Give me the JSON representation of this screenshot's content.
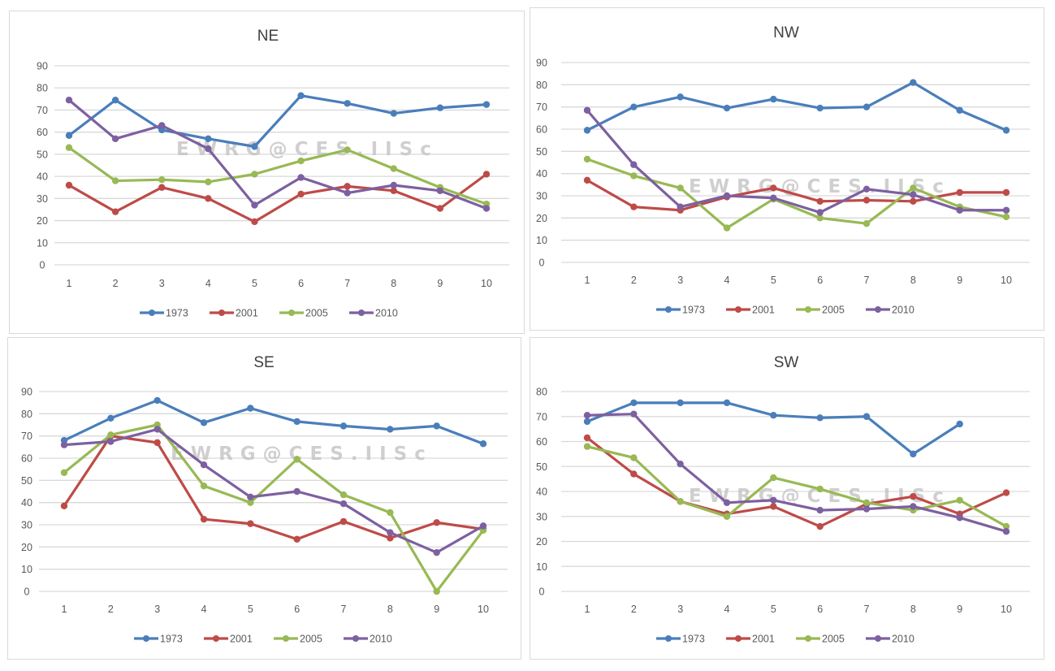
{
  "chart_data": [
    {
      "type": "line",
      "title": "NE",
      "xlabel": "",
      "ylabel": "",
      "x": [
        1,
        2,
        3,
        4,
        5,
        6,
        7,
        8,
        9,
        10
      ],
      "ylim": [
        0,
        90
      ],
      "yticks": [
        0,
        10,
        20,
        30,
        40,
        50,
        60,
        70,
        80,
        90
      ],
      "grid": true,
      "legend": "bottom",
      "watermark": "EWRG@CES.IISc",
      "series": [
        {
          "name": "1973",
          "color": "#4a7ebb",
          "values": [
            58.5,
            74.5,
            61,
            57,
            53.5,
            76.5,
            73,
            68.5,
            71,
            72.5
          ]
        },
        {
          "name": "2001",
          "color": "#be4b48",
          "values": [
            36,
            24,
            35,
            30,
            19.5,
            32,
            35.5,
            33.5,
            25.5,
            41
          ]
        },
        {
          "name": "2005",
          "color": "#98b954",
          "values": [
            53,
            38,
            38.5,
            37.5,
            41,
            47,
            52,
            43.5,
            35,
            27.5
          ]
        },
        {
          "name": "2010",
          "color": "#7d60a0",
          "values": [
            74.5,
            57,
            63,
            52.5,
            27,
            39.5,
            32.5,
            36,
            33.5,
            25.5
          ]
        }
      ]
    },
    {
      "type": "line",
      "title": "NW",
      "xlabel": "",
      "ylabel": "",
      "x": [
        1,
        2,
        3,
        4,
        5,
        6,
        7,
        8,
        9,
        10
      ],
      "ylim": [
        0,
        90
      ],
      "yticks": [
        0,
        10,
        20,
        30,
        40,
        50,
        60,
        70,
        80,
        90
      ],
      "grid": true,
      "legend": "bottom",
      "watermark": "EWRG@CES.IISc",
      "series": [
        {
          "name": "1973",
          "color": "#4a7ebb",
          "values": [
            59.5,
            70,
            74.5,
            69.5,
            73.5,
            69.5,
            70,
            81,
            68.5,
            59.5
          ]
        },
        {
          "name": "2001",
          "color": "#be4b48",
          "values": [
            37,
            25,
            23.5,
            29.5,
            33.5,
            27.5,
            28,
            27.5,
            31.5,
            31.5
          ]
        },
        {
          "name": "2005",
          "color": "#98b954",
          "values": [
            46.5,
            39,
            33.5,
            15.5,
            28.5,
            20,
            17.5,
            33.5,
            25,
            20.5
          ]
        },
        {
          "name": "2010",
          "color": "#7d60a0",
          "values": [
            68.5,
            44,
            25,
            30,
            29,
            22.5,
            33,
            30.5,
            23.5,
            23.5
          ]
        }
      ]
    },
    {
      "type": "line",
      "title": "SE",
      "xlabel": "",
      "ylabel": "",
      "x": [
        1,
        2,
        3,
        4,
        5,
        6,
        7,
        8,
        9,
        10
      ],
      "ylim": [
        0,
        90
      ],
      "yticks": [
        0,
        10,
        20,
        30,
        40,
        50,
        60,
        70,
        80,
        90
      ],
      "grid": true,
      "legend": "bottom",
      "watermark": "EWRG@CES.IISc",
      "series": [
        {
          "name": "1973",
          "color": "#4a7ebb",
          "values": [
            68,
            78,
            86,
            76,
            82.5,
            76.5,
            74.5,
            73,
            74.5,
            66.5
          ]
        },
        {
          "name": "2001",
          "color": "#be4b48",
          "values": [
            38.5,
            70,
            67,
            32.5,
            30.5,
            23.5,
            31.5,
            24,
            31,
            28
          ]
        },
        {
          "name": "2005",
          "color": "#98b954",
          "values": [
            53.5,
            70.5,
            75,
            47.5,
            40,
            59.5,
            43.5,
            35.5,
            0,
            27.5
          ]
        },
        {
          "name": "2010",
          "color": "#7d60a0",
          "values": [
            66,
            67.5,
            73,
            57,
            42.5,
            45,
            39.5,
            26.5,
            17.5,
            29.5
          ]
        }
      ]
    },
    {
      "type": "line",
      "title": "SW",
      "xlabel": "",
      "ylabel": "",
      "x": [
        1,
        2,
        3,
        4,
        5,
        6,
        7,
        8,
        9,
        10
      ],
      "ylim": [
        0,
        80
      ],
      "yticks": [
        0,
        10,
        20,
        30,
        40,
        50,
        60,
        70,
        80
      ],
      "grid": true,
      "legend": "bottom",
      "watermark": "EWRG@CES.IISc",
      "series": [
        {
          "name": "1973",
          "color": "#4a7ebb",
          "values": [
            68,
            75.5,
            75.5,
            75.5,
            70.5,
            69.5,
            70,
            55,
            67,
            null
          ]
        },
        {
          "name": "2001",
          "color": "#be4b48",
          "values": [
            61.5,
            47,
            36,
            31,
            34,
            26,
            35,
            38,
            31,
            39.5
          ]
        },
        {
          "name": "2005",
          "color": "#98b954",
          "values": [
            58,
            53.5,
            36,
            30,
            45.5,
            41,
            35.5,
            32.5,
            36.5,
            26
          ]
        },
        {
          "name": "2010",
          "color": "#7d60a0",
          "values": [
            70.5,
            71,
            51,
            35.5,
            36.5,
            32.5,
            33,
            34,
            29.5,
            24
          ]
        }
      ]
    }
  ]
}
